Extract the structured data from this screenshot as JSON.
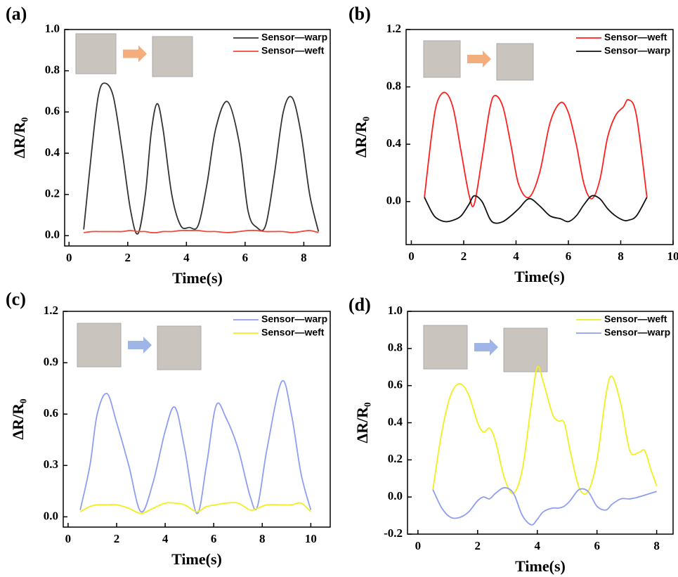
{
  "chart_data": [
    {
      "type": "line",
      "panel_label": "(a)",
      "xlabel": "Time(s)",
      "ylabel": "ΔR/R₀",
      "legend": "upper right",
      "xlim": [
        -0.15,
        8.9
      ],
      "ylim": [
        -0.05,
        1.0
      ],
      "xticks": [
        0,
        2,
        4,
        6,
        8
      ],
      "yticks": [
        {
          "value": 0,
          "label": "0.0"
        },
        0.2,
        0.4,
        0.6,
        0.8,
        {
          "value": 1,
          "label": "1.0"
        }
      ],
      "x": [
        0.5,
        0.8,
        1.0,
        1.2,
        1.5,
        1.8,
        2.1,
        2.35,
        2.6,
        2.8,
        3.0,
        3.2,
        3.5,
        3.8,
        4.1,
        4.4,
        4.7,
        5.0,
        5.4,
        5.8,
        6.1,
        6.4,
        6.7,
        7.0,
        7.3,
        7.6,
        7.9,
        8.2,
        8.5
      ],
      "series": [
        {
          "name": "Sensor—warp",
          "color": "#333333",
          "values": [
            0.03,
            0.45,
            0.68,
            0.74,
            0.68,
            0.42,
            0.12,
            0.01,
            0.2,
            0.5,
            0.64,
            0.52,
            0.2,
            0.05,
            0.04,
            0.05,
            0.25,
            0.52,
            0.65,
            0.45,
            0.12,
            0.04,
            0.05,
            0.3,
            0.6,
            0.67,
            0.5,
            0.2,
            0.02
          ]
        },
        {
          "name": "Sensor—weft",
          "color": "#f04a3a",
          "values": [
            0.015,
            0.02,
            0.02,
            0.02,
            0.02,
            0.02,
            0.025,
            0.02,
            0.02,
            0.015,
            0.015,
            0.02,
            0.02,
            0.025,
            0.025,
            0.025,
            0.02,
            0.02,
            0.015,
            0.02,
            0.025,
            0.025,
            0.02,
            0.02,
            0.02,
            0.015,
            0.02,
            0.025,
            0.015
          ]
        }
      ]
    },
    {
      "type": "line",
      "panel_label": "(b)",
      "xlabel": "Time(s)",
      "ylabel": "ΔR/R₀",
      "legend": "upper right",
      "xlim": [
        -0.2,
        10
      ],
      "ylim": [
        -0.3,
        1.2
      ],
      "xticks": [
        0,
        2,
        4,
        6,
        8,
        10
      ],
      "yticks": [
        {
          "value": 0,
          "label": "0.0"
        },
        0.4,
        0.8,
        1.2
      ],
      "x": [
        0.5,
        0.8,
        1.0,
        1.3,
        1.6,
        1.9,
        2.2,
        2.4,
        2.7,
        3.0,
        3.2,
        3.5,
        3.8,
        4.1,
        4.5,
        4.9,
        5.3,
        5.7,
        6.0,
        6.3,
        6.6,
        6.9,
        7.2,
        7.5,
        7.8,
        8.1,
        8.3,
        8.6,
        9.0
      ],
      "series": [
        {
          "name": "Sensor—weft",
          "color": "#ff1f1f",
          "values": [
            0.03,
            0.5,
            0.7,
            0.76,
            0.65,
            0.35,
            0.05,
            -0.02,
            0.3,
            0.65,
            0.74,
            0.66,
            0.4,
            0.12,
            0.03,
            0.2,
            0.55,
            0.69,
            0.62,
            0.4,
            0.12,
            0.02,
            0.15,
            0.45,
            0.6,
            0.66,
            0.71,
            0.6,
            0.03
          ]
        },
        {
          "name": "Sensor—warp",
          "color": "#111111",
          "values": [
            0.03,
            -0.08,
            -0.12,
            -0.14,
            -0.13,
            -0.1,
            -0.02,
            0.04,
            0.0,
            -0.12,
            -0.15,
            -0.14,
            -0.1,
            -0.05,
            0.02,
            -0.03,
            -0.1,
            -0.12,
            -0.14,
            -0.1,
            -0.02,
            0.04,
            0.02,
            -0.05,
            -0.1,
            -0.13,
            -0.13,
            -0.1,
            0.03
          ]
        }
      ]
    },
    {
      "type": "line",
      "panel_label": "(c)",
      "xlabel": "Time(s)",
      "ylabel": "ΔR/R₀",
      "legend": "upper right",
      "xlim": [
        -0.2,
        10.8
      ],
      "ylim": [
        -0.06,
        1.2
      ],
      "xticks": [
        0,
        2,
        4,
        6,
        8,
        10
      ],
      "yticks": [
        {
          "value": 0,
          "label": "0.0"
        },
        0.3,
        0.6,
        0.9,
        1.2
      ],
      "x": [
        0.5,
        0.9,
        1.2,
        1.6,
        2.0,
        2.5,
        3.0,
        3.5,
        4.0,
        4.4,
        4.8,
        5.3,
        5.7,
        6.1,
        6.5,
        7.0,
        7.5,
        7.8,
        8.2,
        8.8,
        9.2,
        9.6,
        10.0
      ],
      "series": [
        {
          "name": "Sensor—warp",
          "color": "#8f9ef0",
          "values": [
            0.04,
            0.3,
            0.6,
            0.72,
            0.55,
            0.3,
            0.03,
            0.2,
            0.5,
            0.64,
            0.4,
            0.02,
            0.3,
            0.65,
            0.58,
            0.4,
            0.12,
            0.06,
            0.4,
            0.79,
            0.6,
            0.25,
            0.04
          ]
        },
        {
          "name": "Sensor—weft",
          "color": "#f0f020",
          "values": [
            0.03,
            0.06,
            0.07,
            0.07,
            0.07,
            0.05,
            0.02,
            0.05,
            0.08,
            0.08,
            0.07,
            0.03,
            0.06,
            0.07,
            0.08,
            0.08,
            0.04,
            0.05,
            0.07,
            0.07,
            0.07,
            0.08,
            0.03
          ]
        }
      ]
    },
    {
      "type": "line",
      "panel_label": "(d)",
      "xlabel": "Time(s)",
      "ylabel": "ΔR/R₀",
      "legend": "upper right",
      "xlim": [
        -0.35,
        8.55
      ],
      "ylim": [
        -0.2,
        1.0
      ],
      "xticks": [
        0,
        2,
        4,
        6,
        8
      ],
      "yticks": [
        -0.2,
        {
          "value": 0,
          "label": "0.0"
        },
        0.2,
        0.4,
        0.6,
        0.8,
        {
          "value": 1,
          "label": "1.0"
        }
      ],
      "x": [
        0.5,
        0.8,
        1.1,
        1.4,
        1.7,
        2.0,
        2.2,
        2.4,
        2.6,
        2.9,
        3.2,
        3.5,
        3.8,
        4.0,
        4.2,
        4.5,
        4.7,
        4.9,
        5.1,
        5.4,
        5.7,
        6.0,
        6.3,
        6.5,
        6.8,
        7.1,
        7.4,
        7.6,
        7.8,
        8.0
      ],
      "series": [
        {
          "name": "Sensor—weft",
          "color": "#f0f020",
          "values": [
            0.04,
            0.35,
            0.55,
            0.61,
            0.55,
            0.4,
            0.35,
            0.37,
            0.3,
            0.1,
            0.02,
            0.15,
            0.5,
            0.7,
            0.62,
            0.45,
            0.41,
            0.4,
            0.25,
            0.05,
            0.03,
            0.2,
            0.55,
            0.65,
            0.5,
            0.25,
            0.24,
            0.25,
            0.15,
            0.06
          ]
        },
        {
          "name": "Sensor—warp",
          "color": "#8f9ef0",
          "values": [
            0.04,
            -0.06,
            -0.11,
            -0.11,
            -0.08,
            -0.02,
            0.0,
            -0.01,
            0.02,
            0.05,
            0.02,
            -0.1,
            -0.15,
            -0.12,
            -0.08,
            -0.06,
            -0.06,
            -0.05,
            -0.02,
            0.04,
            0.03,
            -0.05,
            -0.07,
            -0.04,
            -0.01,
            -0.01,
            0.0,
            0.01,
            0.02,
            0.03
          ]
        }
      ]
    }
  ]
}
